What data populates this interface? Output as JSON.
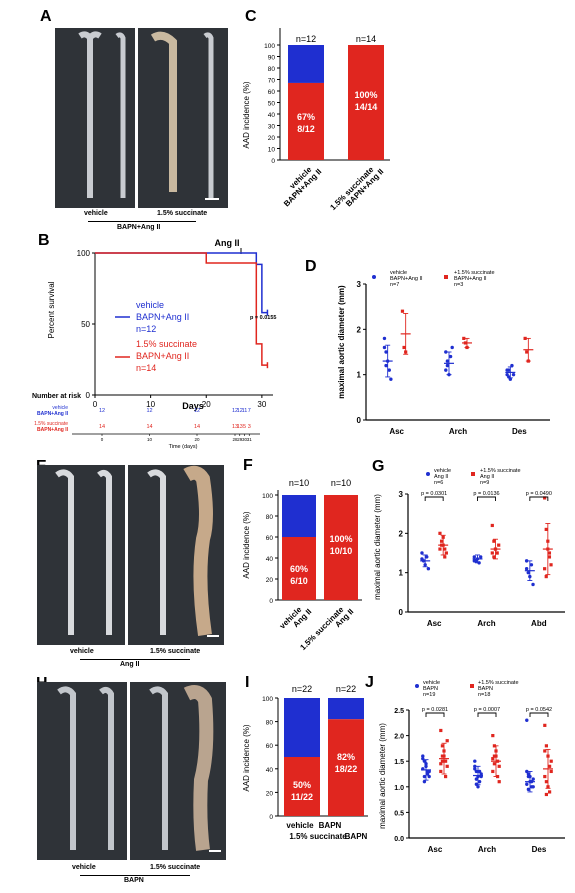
{
  "panels": {
    "A": {
      "letter": "A",
      "labels": [
        "vehicle",
        "1.5% succinate"
      ],
      "group": "BAPN+Ang II"
    },
    "B": {
      "letter": "B",
      "annotation": "Ang II",
      "ylabel": "Percent survival",
      "xlabel": "Days",
      "yticks": [
        "0",
        "50",
        "100"
      ],
      "xticks": [
        "0",
        "10",
        "20",
        "30"
      ],
      "pvalue": "p = 0.0155",
      "legend": [
        {
          "name": "vehicle",
          "group": "BAPN+Ang II",
          "n": "n=12",
          "color": "#1f2fd0"
        },
        {
          "name": "1.5% succinate",
          "group": "BAPN+Ang II",
          "n": "n=14",
          "color": "#e0261f"
        }
      ],
      "risk_title": "Number at risk",
      "risk_rows": [
        {
          "label1": "vehicle",
          "label2": "BAPN+Ang II",
          "color": "#1f2fd0",
          "counts": [
            "12",
            "12",
            "12",
            "12",
            "12",
            "11",
            "7"
          ]
        },
        {
          "label1": "1.5% succinate",
          "label2": "BAPN+Ang II",
          "color": "#e0261f",
          "counts": [
            "14",
            "14",
            "14",
            "13",
            "13",
            "5",
            "3"
          ]
        }
      ],
      "risk_xticks": [
        "0",
        "10",
        "20",
        "28",
        "29",
        "30",
        "31"
      ],
      "risk_xlabel": "Time (days)"
    },
    "C": {
      "letter": "C",
      "ylabel": "AAD incidence (%)",
      "yticks": [
        "0",
        "10",
        "20",
        "30",
        "40",
        "50",
        "60",
        "70",
        "80",
        "90",
        "100"
      ],
      "bars": [
        {
          "n": "n=12",
          "pct": "67%",
          "frac": "8/12",
          "xlabel1": "vehicle",
          "xlabel2": "BAPN+Ang II"
        },
        {
          "n": "n=14",
          "pct": "100%",
          "frac": "14/14",
          "xlabel1": "1.5% succinate",
          "xlabel2": "BAPN+Ang II"
        }
      ]
    },
    "D": {
      "letter": "D",
      "ylabel": "maximal aortic diameter (mm)",
      "yticks": [
        "0",
        "1",
        "2",
        "3"
      ],
      "categories": [
        "Asc",
        "Arch",
        "Des"
      ],
      "legend": [
        {
          "name": "vehicle",
          "group": "BAPN+Ang II",
          "n": "n=7",
          "color": "#1f2fd0"
        },
        {
          "name": "+1.5% succinate",
          "group": "BAPN+Ang II",
          "n": "n=3",
          "color": "#e0261f"
        }
      ]
    },
    "E": {
      "letter": "E",
      "labels": [
        "vehicle",
        "1.5% succinate"
      ],
      "group": "Ang II"
    },
    "F": {
      "letter": "F",
      "ylabel": "AAD incidence (%)",
      "yticks": [
        "0",
        "20",
        "40",
        "60",
        "80",
        "100"
      ],
      "bars": [
        {
          "n": "n=10",
          "pct": "60%",
          "frac": "6/10",
          "xlabel1": "vehicle",
          "xlabel2": "Ang II"
        },
        {
          "n": "n=10",
          "pct": "100%",
          "frac": "10/10",
          "xlabel1": "1.5% succinate",
          "xlabel2": "Ang II"
        }
      ]
    },
    "G": {
      "letter": "G",
      "ylabel": "maximal aortic diameter (mm)",
      "yticks": [
        "0",
        "1",
        "2",
        "3"
      ],
      "categories": [
        "Asc",
        "Arch",
        "Abd"
      ],
      "pvalues": [
        "p = 0.0301",
        "p = 0.0136",
        "p = 0.0490"
      ],
      "legend": [
        {
          "name": "vehicle",
          "group": "Ang II",
          "n": "n=6",
          "color": "#1f2fd0"
        },
        {
          "name": "+1.5% succinate",
          "group": "Ang II",
          "n": "n=9",
          "color": "#e0261f"
        }
      ]
    },
    "H": {
      "letter": "H",
      "labels": [
        "vehicle",
        "1.5% succinate"
      ],
      "group": "BAPN"
    },
    "I": {
      "letter": "I",
      "ylabel": "AAD incidence (%)",
      "yticks": [
        "0",
        "20",
        "40",
        "60",
        "80",
        "100"
      ],
      "bars": [
        {
          "n": "n=22",
          "pct": "50%",
          "frac": "11/22",
          "xlabel1": "vehicle",
          "xlabel2": "BAPN"
        },
        {
          "n": "n=22",
          "pct": "82%",
          "frac": "18/22",
          "xlabel1": "1.5% succinate",
          "xlabel2": "BAPN"
        }
      ]
    },
    "J": {
      "letter": "J",
      "ylabel": "maximal aortic diameter (mm)",
      "yticks": [
        "0.0",
        "0.5",
        "1.0",
        "1.5",
        "2.0",
        "2.5"
      ],
      "categories": [
        "Asc",
        "Arch",
        "Des"
      ],
      "pvalues": [
        "p = 0.0281",
        "p = 0.0007",
        "p = 0.0542"
      ],
      "legend": [
        {
          "name": "vehicle",
          "group": "BAPN",
          "n": "n=19",
          "color": "#1f2fd0"
        },
        {
          "name": "+1.5% succinate",
          "group": "BAPN",
          "n": "n=18",
          "color": "#e0261f"
        }
      ]
    }
  },
  "chart_data": [
    {
      "type": "line",
      "panel": "B",
      "xlabel": "Days",
      "ylabel": "Percent survival",
      "xlim": [
        0,
        32
      ],
      "ylim": [
        0,
        100
      ],
      "series": [
        {
          "name": "vehicle BAPN+Ang II",
          "color": "#1f2fd0",
          "x": [
            0,
            29,
            29,
            30,
            30,
            31
          ],
          "y": [
            100,
            100,
            92,
            92,
            58,
            58
          ]
        },
        {
          "name": "1.5% succinate BAPN+Ang II",
          "color": "#e0261f",
          "x": [
            0,
            20,
            20,
            29,
            29,
            30,
            30,
            31
          ],
          "y": [
            100,
            100,
            93,
            93,
            36,
            36,
            21,
            21
          ]
        }
      ]
    },
    {
      "type": "bar",
      "panel": "C",
      "stacked": true,
      "ylabel": "AAD incidence (%)",
      "ylim": [
        0,
        100
      ],
      "categories": [
        "vehicle BAPN+Ang II",
        "1.5% succinate BAPN+Ang II"
      ],
      "series": [
        {
          "color": "#e0261f",
          "values": [
            67,
            100
          ]
        },
        {
          "color": "#1f2fd0",
          "values": [
            33,
            0
          ]
        }
      ]
    },
    {
      "type": "scatter",
      "panel": "D",
      "ylabel": "maximal aortic diameter (mm)",
      "ylim": [
        0,
        3
      ],
      "categories": [
        "Asc",
        "Arch",
        "Des"
      ],
      "series": [
        {
          "name": "vehicle",
          "color": "#1f2fd0",
          "points": [
            [
              1.8,
              1.5,
              1.3,
              1.1,
              0.9,
              1.6,
              1.2
            ],
            [
              1.5,
              1.2,
              1.0,
              1.4,
              1.6,
              1.1,
              1.3
            ],
            [
              1.0,
              1.1,
              0.9,
              1.2,
              1.0,
              1.1,
              0.95
            ]
          ],
          "means": [
            1.3,
            1.25,
            1.05
          ],
          "sd": [
            0.35,
            0.25,
            0.12
          ]
        },
        {
          "name": "+1.5% succinate",
          "color": "#e0261f",
          "points": [
            [
              2.4,
              1.6,
              1.5
            ],
            [
              1.8,
              1.7,
              1.6
            ],
            [
              1.8,
              1.5,
              1.3
            ]
          ],
          "means": [
            1.9,
            1.7,
            1.55
          ],
          "sd": [
            0.45,
            0.1,
            0.25
          ]
        }
      ]
    },
    {
      "type": "bar",
      "panel": "F",
      "stacked": true,
      "ylabel": "AAD incidence (%)",
      "ylim": [
        0,
        100
      ],
      "categories": [
        "vehicle Ang II",
        "1.5% succinate Ang II"
      ],
      "series": [
        {
          "color": "#e0261f",
          "values": [
            60,
            100
          ]
        },
        {
          "color": "#1f2fd0",
          "values": [
            40,
            0
          ]
        }
      ]
    },
    {
      "type": "scatter",
      "panel": "G",
      "ylabel": "maximal aortic diameter (mm)",
      "ylim": [
        0,
        3
      ],
      "categories": [
        "Asc",
        "Arch",
        "Abd"
      ],
      "series": [
        {
          "name": "vehicle",
          "color": "#1f2fd0",
          "points": [
            [
              1.5,
              1.3,
              1.2,
              1.4,
              1.1,
              1.35
            ],
            [
              1.4,
              1.3,
              1.35,
              1.25,
              1.4,
              1.3
            ],
            [
              1.3,
              1.0,
              0.9,
              1.2,
              0.7,
              1.1
            ]
          ],
          "means": [
            1.3,
            1.35,
            1.05
          ],
          "sd": [
            0.15,
            0.1,
            0.25
          ]
        },
        {
          "name": "+1.5% succinate",
          "color": "#e0261f",
          "points": [
            [
              2.0,
              1.8,
              1.7,
              1.6,
              1.5,
              1.6,
              1.7,
              1.9,
              1.4
            ],
            [
              2.2,
              1.8,
              1.6,
              1.5,
              1.7,
              1.5,
              1.4,
              1.6,
              1.5
            ],
            [
              2.9,
              2.1,
              1.8,
              1.5,
              1.2,
              1.1,
              0.9,
              1.6,
              1.4
            ]
          ],
          "means": [
            1.7,
            1.6,
            1.6
          ],
          "sd": [
            0.25,
            0.25,
            0.65
          ]
        }
      ]
    },
    {
      "type": "bar",
      "panel": "I",
      "stacked": true,
      "ylabel": "AAD incidence (%)",
      "ylim": [
        0,
        100
      ],
      "categories": [
        "vehicle BAPN",
        "1.5% succinate BAPN"
      ],
      "series": [
        {
          "color": "#e0261f",
          "values": [
            50,
            82
          ]
        },
        {
          "color": "#1f2fd0",
          "values": [
            50,
            18
          ]
        }
      ]
    },
    {
      "type": "scatter",
      "panel": "J",
      "ylabel": "maximal aortic diameter (mm)",
      "ylim": [
        0,
        2.5
      ],
      "categories": [
        "Asc",
        "Arch",
        "Des"
      ],
      "series": [
        {
          "name": "vehicle",
          "color": "#1f2fd0",
          "points": [
            [
              1.6,
              1.5,
              1.4,
              1.3,
              1.2,
              1.35,
              1.1,
              1.45,
              1.25,
              1.3,
              1.55,
              1.2
            ],
            [
              1.5,
              1.3,
              1.2,
              1.1,
              1.25,
              1.4,
              1.15,
              1.0,
              1.3,
              1.2,
              1.35,
              1.05
            ],
            [
              1.3,
              1.2,
              1.1,
              1.0,
              1.15,
              1.05,
              0.95,
              1.2,
              1.1,
              1.0,
              2.3,
              1.25
            ]
          ],
          "means": [
            1.33,
            1.22,
            1.1
          ],
          "sd": [
            0.2,
            0.18,
            0.2
          ]
        },
        {
          "name": "+1.5% succinate",
          "color": "#e0261f",
          "points": [
            [
              2.1,
              1.8,
              1.6,
              1.5,
              1.4,
              1.3,
              1.5,
              1.7,
              1.2,
              1.9,
              1.45,
              1.6
            ],
            [
              2.0,
              1.8,
              1.6,
              1.5,
              1.4,
              1.3,
              1.6,
              1.7,
              1.2,
              1.1,
              1.55,
              1.45
            ],
            [
              2.2,
              1.8,
              1.6,
              1.4,
              1.3,
              1.2,
              1.1,
              1.0,
              0.9,
              1.5,
              1.7,
              0.85
            ]
          ],
          "means": [
            1.55,
            1.5,
            1.35
          ],
          "sd": [
            0.3,
            0.3,
            0.38
          ]
        }
      ]
    }
  ]
}
